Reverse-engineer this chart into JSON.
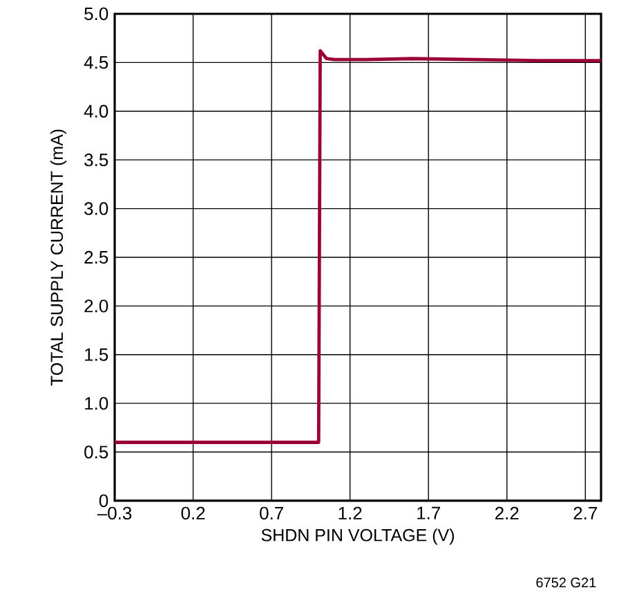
{
  "chart_data": {
    "type": "line",
    "xlabel": "SHDN PIN VOLTAGE (V)",
    "ylabel": "TOTAL SUPPLY CURRENT (mA)",
    "annotations": [
      "6752 G21"
    ],
    "x": [
      -0.3,
      0.5,
      0.98,
      1.0,
      1.01,
      1.02,
      1.05,
      1.1,
      1.3,
      1.6,
      2.0,
      2.4,
      2.8
    ],
    "series": [
      {
        "color": "#9a0034",
        "values": [
          0.6,
          0.6,
          0.6,
          0.6,
          4.62,
          4.6,
          4.54,
          4.53,
          4.53,
          4.54,
          4.53,
          4.52,
          4.52
        ]
      }
    ],
    "xlim": [
      -0.3,
      2.8
    ],
    "ylim": [
      0,
      5
    ],
    "xticks": [
      {
        "value": -0.3,
        "label": "–0.3"
      },
      0.2,
      0.7,
      1.2,
      1.7,
      2.2,
      2.7
    ],
    "yticks": [
      0,
      0.5,
      {
        "value": 1,
        "label": "1.0"
      },
      1.5,
      {
        "value": 2,
        "label": "2.0"
      },
      2.5,
      {
        "value": 3,
        "label": "3.0"
      },
      3.5,
      {
        "value": 4,
        "label": "4.0"
      },
      4.5,
      {
        "value": 5,
        "label": "5.0"
      }
    ],
    "grid": true,
    "marker": "none",
    "line_style": "solid"
  }
}
